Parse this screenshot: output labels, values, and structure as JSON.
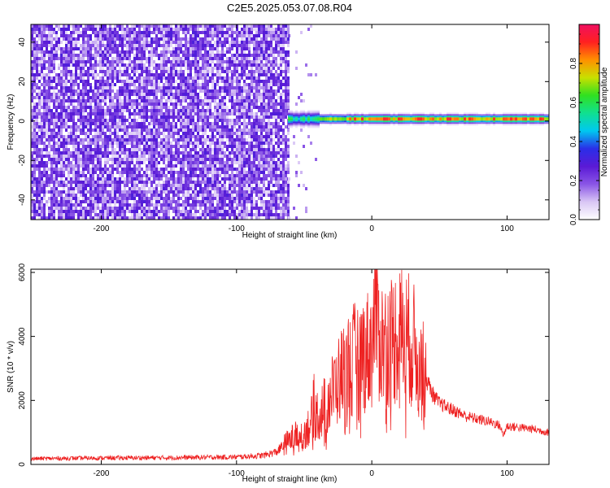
{
  "figure_title": "C2E5.2025.053.07.08.R04",
  "chart_data": [
    {
      "type": "heatmap",
      "title": "",
      "xlabel": "Height of straight line (km)",
      "ylabel": "Frequency (Hz)",
      "xlim": [
        -252,
        131
      ],
      "ylim": [
        -50,
        49
      ],
      "xticks": [
        -200,
        -100,
        0,
        100
      ],
      "yticks": [
        -40,
        -20,
        0,
        20,
        40
      ],
      "colorbar": {
        "label": "Normalized spectral amplitude",
        "range": [
          0,
          1
        ],
        "ticks": [
          0.0,
          0.2,
          0.4,
          0.6,
          0.8
        ],
        "tick_labels": [
          "0.0",
          "0.2",
          "0.4",
          "0.6",
          "0.8"
        ],
        "colormap": [
          "#ffffff",
          "#d9c6f5",
          "#8a55e6",
          "#5a1ad6",
          "#2a2ee8",
          "#00c8f0",
          "#10e090",
          "#30e020",
          "#c8e000",
          "#ff9000",
          "#ff2020",
          "#f01060"
        ]
      },
      "regions": [
        {
          "description": "noise",
          "x_range": [
            -252,
            -62
          ],
          "freq_range": [
            -50,
            49
          ],
          "amplitude_range": [
            0.05,
            0.3
          ]
        },
        {
          "description": "signal band",
          "x_range": [
            -62,
            131
          ],
          "center_freq": 1,
          "amplitude_peak": 1.0
        }
      ]
    },
    {
      "type": "line",
      "title": "",
      "xlabel": "Height of straight line (km)",
      "ylabel": "SNR (10 * v/v)",
      "xlim": [
        -252,
        131
      ],
      "ylim": [
        0,
        6100
      ],
      "xticks": [
        -200,
        -100,
        0,
        100
      ],
      "yticks": [
        0,
        2000,
        4000,
        6000
      ],
      "series": [
        {
          "color": "#ee2222",
          "x": [
            -252,
            -200,
            -150,
            -100,
            -80,
            -70,
            -65,
            -60,
            -55,
            -50,
            -45,
            -42,
            -40,
            -35,
            -30,
            -25,
            -20,
            -15,
            -10,
            -5,
            0,
            3,
            5,
            7,
            10,
            15,
            20,
            25,
            30,
            35,
            40,
            45,
            50,
            60,
            70,
            80,
            90,
            95,
            97,
            100,
            110,
            120,
            131
          ],
          "y": [
            180,
            200,
            210,
            230,
            280,
            400,
            600,
            800,
            900,
            1000,
            1300,
            2000,
            1500,
            1800,
            2200,
            2600,
            3000,
            3200,
            3400,
            3500,
            3700,
            5200,
            4200,
            3800,
            3800,
            3900,
            4100,
            4000,
            3800,
            3200,
            2700,
            2200,
            1900,
            1700,
            1500,
            1400,
            1300,
            1200,
            900,
            1200,
            1150,
            1100,
            1000
          ]
        }
      ]
    }
  ]
}
